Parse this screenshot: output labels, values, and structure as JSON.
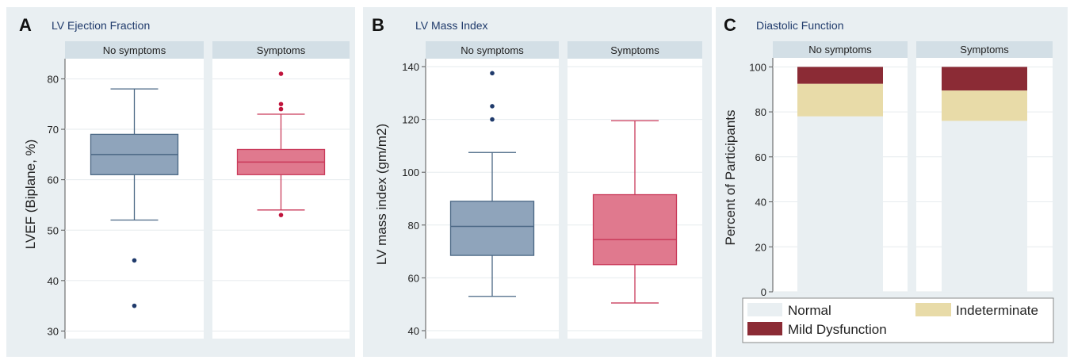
{
  "colors": {
    "background": "#e9eff2",
    "plot_area": "#ffffff",
    "strip": "#d3dfe6",
    "grid": "#e6ebee",
    "axis": "#555555",
    "text": "#222222",
    "title": "#1f3a6b",
    "no_symptoms_fill": "#8fa4bb",
    "no_symptoms_stroke": "#4a6784",
    "no_symptoms_point": "#1f3a6b",
    "symptoms_fill": "#e0798e",
    "symptoms_stroke": "#c93a5a",
    "symptoms_point": "#c0143c",
    "normal": "#e9eff2",
    "indeterminate": "#e8dba8",
    "mild_dysfunction": "#8b2b35"
  },
  "panels": [
    {
      "letter": "A",
      "title": "LV Ejection Fraction"
    },
    {
      "letter": "B",
      "title": "LV Mass Index"
    },
    {
      "letter": "C",
      "title": "Diastolic Function"
    }
  ],
  "chart_data": [
    {
      "type": "box",
      "title": "LV Ejection Fraction",
      "ylabel": "LVEF (Biplane, %)",
      "ylim": [
        28.5,
        84
      ],
      "yticks": [
        30,
        40,
        50,
        60,
        70,
        80
      ],
      "grid": true,
      "facets": [
        "No symptoms",
        "Symptoms"
      ],
      "series": [
        {
          "name": "No symptoms",
          "whisker_low": 52,
          "q1": 61,
          "median": 65,
          "q3": 69,
          "whisker_high": 78,
          "outliers": [
            44,
            35
          ]
        },
        {
          "name": "Symptoms",
          "whisker_low": 54,
          "q1": 61,
          "median": 63.5,
          "q3": 66,
          "whisker_high": 73,
          "outliers": [
            81,
            75,
            74,
            53
          ]
        }
      ]
    },
    {
      "type": "box",
      "title": "LV Mass Index",
      "ylabel": "LV mass index (gm/m2)",
      "ylim": [
        37,
        143
      ],
      "yticks": [
        40,
        60,
        80,
        100,
        120,
        140
      ],
      "grid": true,
      "facets": [
        "No symptoms",
        "Symptoms"
      ],
      "series": [
        {
          "name": "No symptoms",
          "whisker_low": 53,
          "q1": 68.5,
          "median": 79.5,
          "q3": 89,
          "whisker_high": 107.5,
          "outliers": [
            137.5,
            125,
            120
          ]
        },
        {
          "name": "Symptoms",
          "whisker_low": 50.5,
          "q1": 65,
          "median": 74.5,
          "q3": 91.5,
          "whisker_high": 119.5,
          "outliers": []
        }
      ]
    },
    {
      "type": "bar",
      "stacked": true,
      "title": "Diastolic Function",
      "ylabel": "Percent of Participants",
      "ylim": [
        0,
        104
      ],
      "yticks": [
        0,
        20,
        40,
        60,
        80,
        100
      ],
      "grid": true,
      "categories": [
        "No symptoms",
        "Symptoms"
      ],
      "series": [
        {
          "name": "Normal",
          "values": [
            78,
            76
          ]
        },
        {
          "name": "Indeterminate",
          "values": [
            14.5,
            13.5
          ]
        },
        {
          "name": "Mild Dysfunction",
          "values": [
            7.5,
            10.5
          ]
        }
      ],
      "legend": {
        "placement": "bottom",
        "entries": [
          "Normal",
          "Indeterminate",
          "Mild Dysfunction"
        ]
      }
    }
  ]
}
